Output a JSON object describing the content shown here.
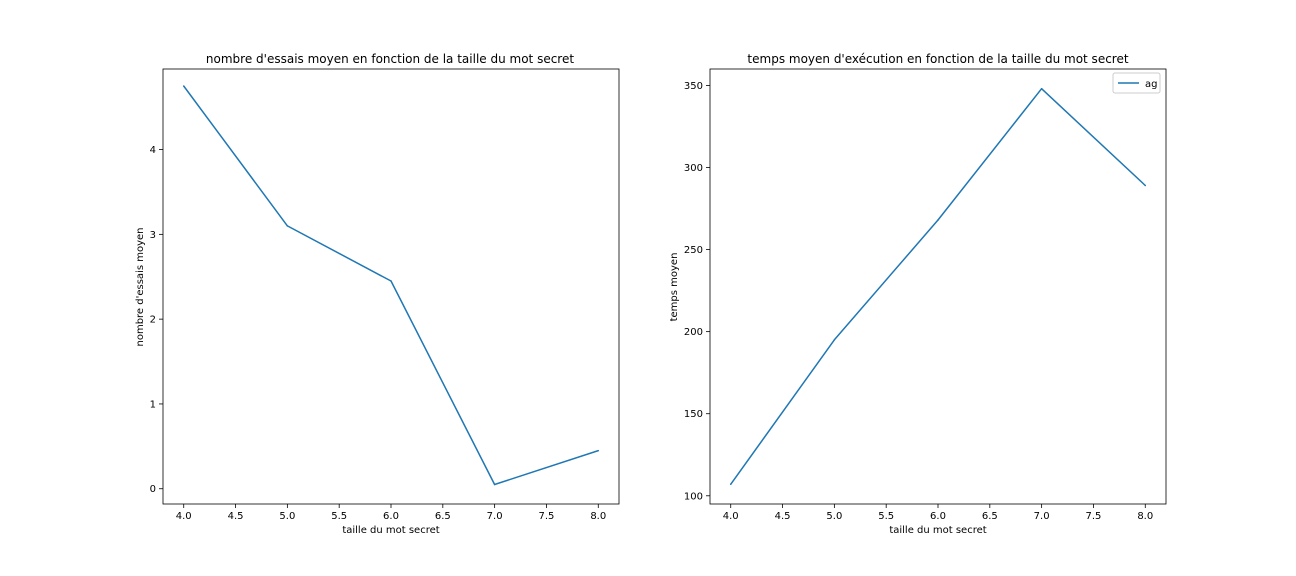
{
  "chart_data": [
    {
      "type": "line",
      "title": "nombre d'essais moyen en fonction de la taille du mot secret",
      "xlabel": "taille du mot secret",
      "ylabel": "nombre d'essais moyen",
      "xlim": [
        3.8,
        8.2
      ],
      "ylim": [
        -0.18,
        4.95
      ],
      "xticks": [
        4.0,
        4.5,
        5.0,
        5.5,
        6.0,
        6.5,
        7.0,
        7.5,
        8.0
      ],
      "xtick_labels": [
        "4.0",
        "4.5",
        "5.0",
        "5.5",
        "6.0",
        "6.5",
        "7.0",
        "7.5",
        "8.0"
      ],
      "yticks": [
        0,
        1,
        2,
        3,
        4
      ],
      "ytick_labels": [
        "0",
        "1",
        "2",
        "3",
        "4"
      ],
      "grid": false,
      "legend": null,
      "series": [
        {
          "color": "#1f77b4",
          "x": [
            4,
            5,
            6,
            7,
            8
          ],
          "y": [
            4.75,
            3.1,
            2.45,
            0.05,
            0.45
          ]
        }
      ]
    },
    {
      "type": "line",
      "title": "temps moyen d'exécution en fonction de la taille du mot secret",
      "xlabel": "taille du mot secret",
      "ylabel": "temps moyen",
      "xlim": [
        3.8,
        8.2
      ],
      "ylim": [
        95,
        360
      ],
      "xticks": [
        4.0,
        4.5,
        5.0,
        5.5,
        6.0,
        6.5,
        7.0,
        7.5,
        8.0
      ],
      "xtick_labels": [
        "4.0",
        "4.5",
        "5.0",
        "5.5",
        "6.0",
        "6.5",
        "7.0",
        "7.5",
        "8.0"
      ],
      "yticks": [
        100,
        150,
        200,
        250,
        300,
        350
      ],
      "ytick_labels": [
        "100",
        "150",
        "200",
        "250",
        "300",
        "350"
      ],
      "grid": false,
      "legend": "upper-right",
      "series": [
        {
          "name": "ag",
          "color": "#1f77b4",
          "x": [
            4,
            5,
            6,
            7,
            8
          ],
          "y": [
            107,
            195,
            268,
            348,
            289
          ]
        }
      ]
    }
  ]
}
